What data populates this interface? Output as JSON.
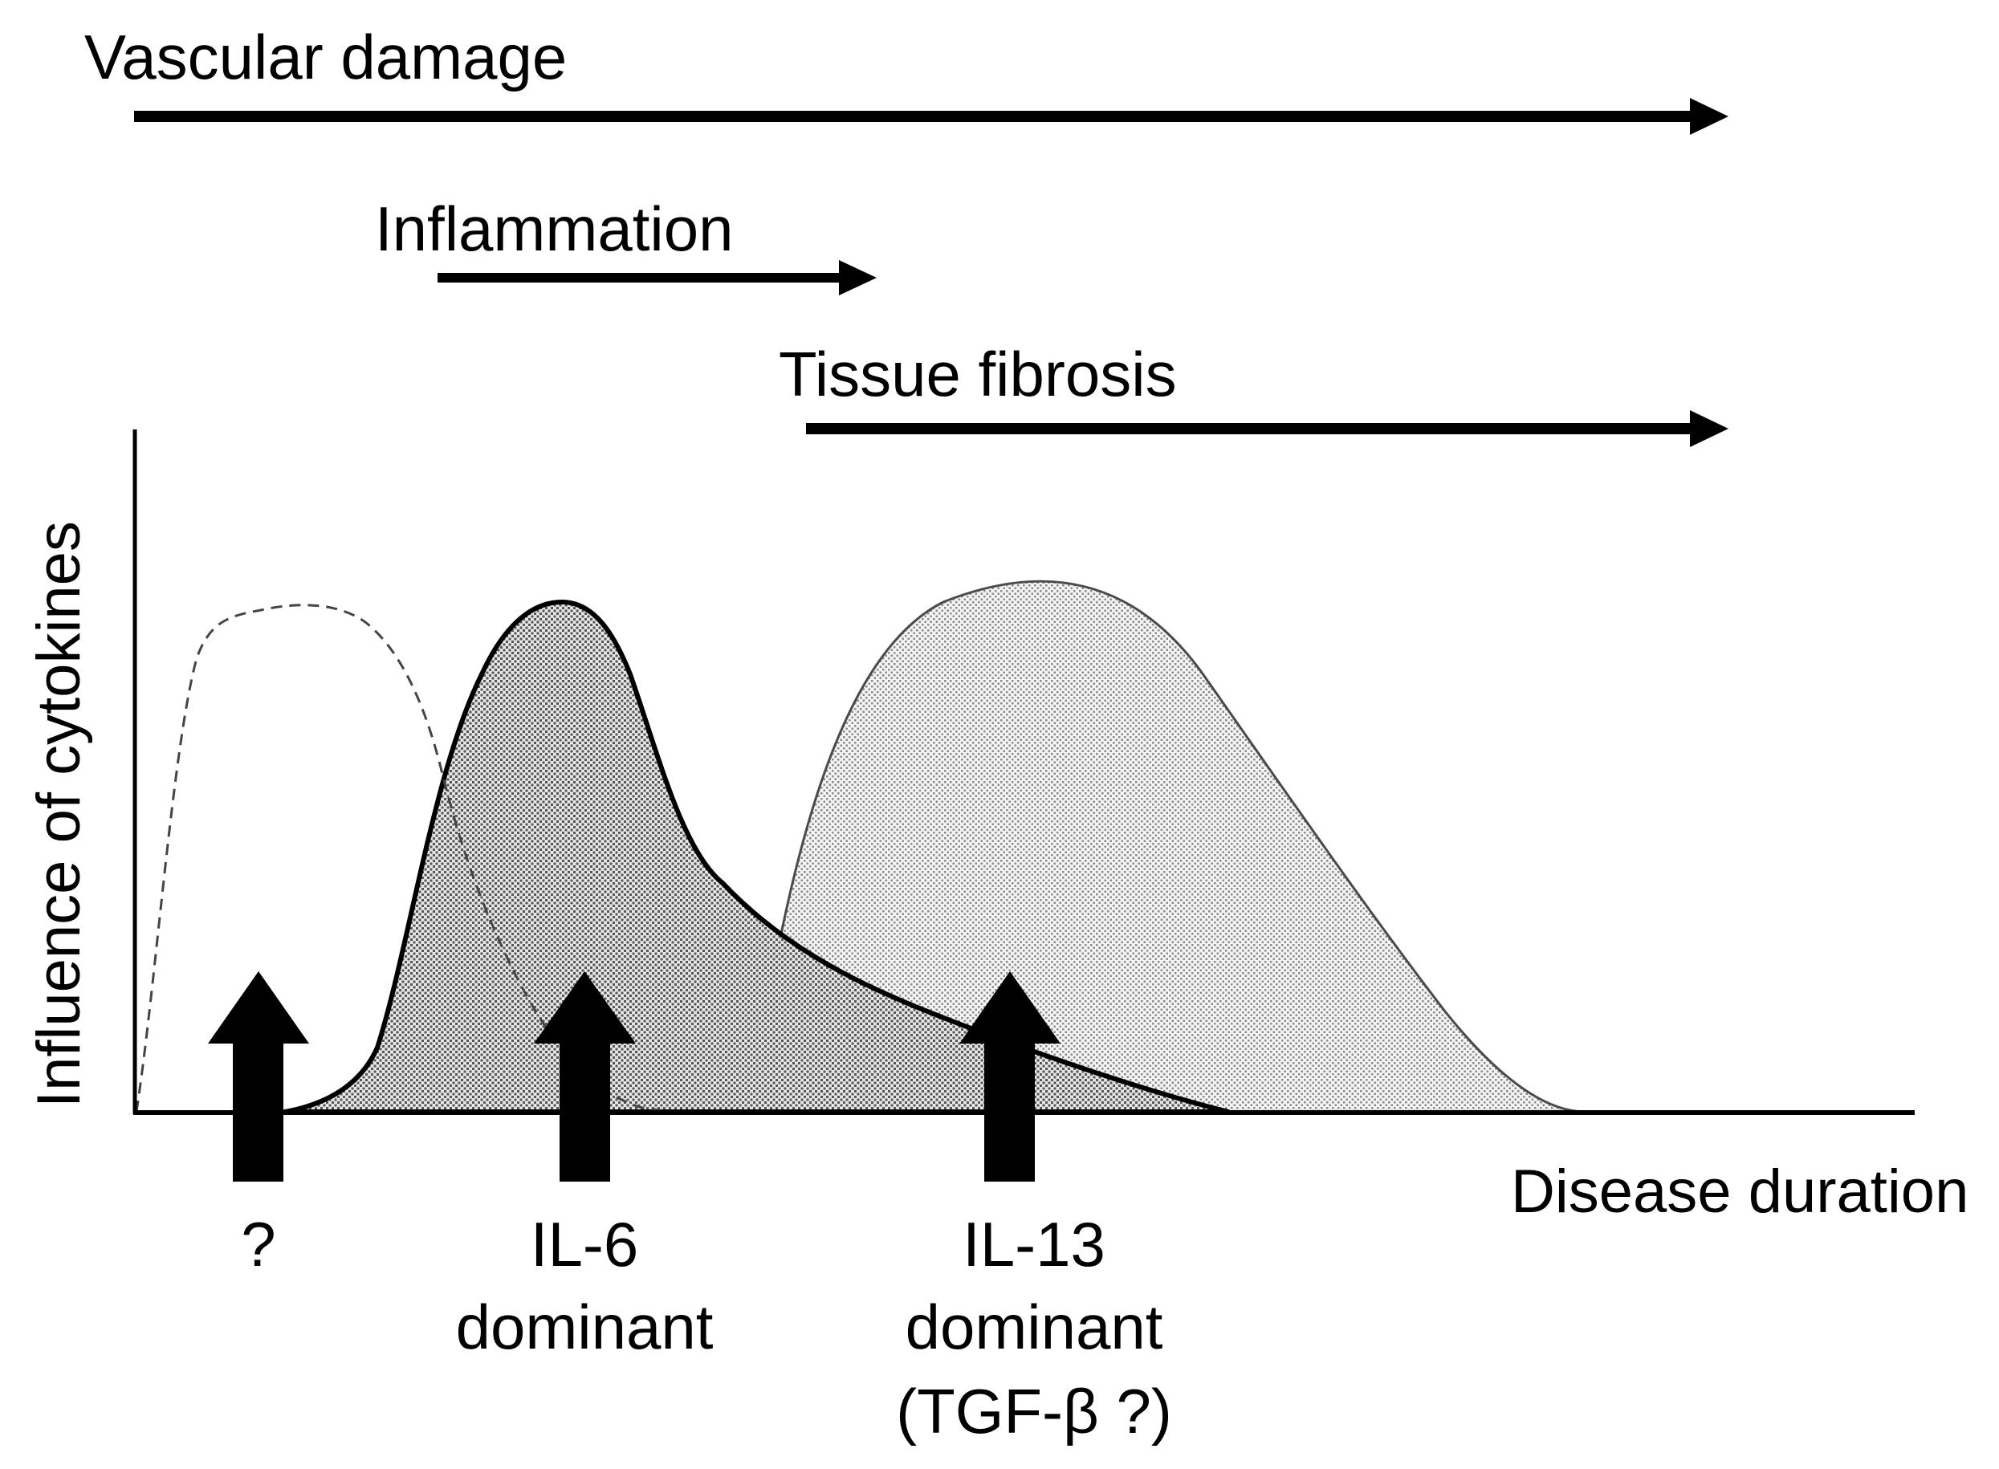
{
  "phases": {
    "vascular_damage": "Vascular damage",
    "inflammation": "Inflammation",
    "tissue_fibrosis": "Tissue fibrosis"
  },
  "axes": {
    "y_label": "Influence of cytokines",
    "x_label": "Disease duration"
  },
  "markers": {
    "unknown": {
      "line1": "?"
    },
    "il6": {
      "line1": "IL-6",
      "line2": "dominant"
    },
    "il13": {
      "line1": "IL-13",
      "line2": "dominant",
      "line3": "(TGF-β ?)"
    }
  }
}
